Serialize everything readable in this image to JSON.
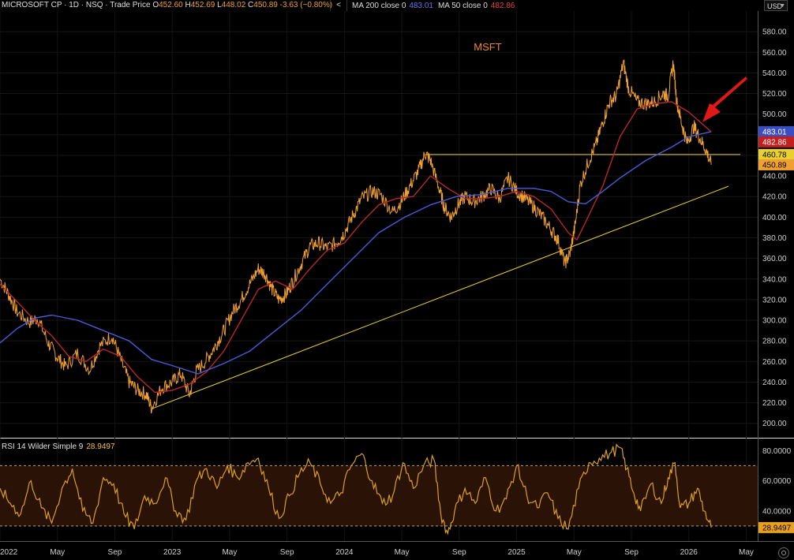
{
  "header": {
    "symbol": "MICROSOFT CP · 1D · NSQ · Trade Price",
    "open_label": "O",
    "open": "452.60",
    "high_label": "H",
    "high": "452.69",
    "low_label": "L",
    "low": "448.02",
    "close_label": "C",
    "close": "450.89",
    "change": "-3.63 (−0.80%)"
  },
  "indicators": {
    "chevron": "<",
    "ma200_label": "MA 200 close 0",
    "ma200_value": "483.01",
    "ma50_label": "MA 50 close 0",
    "ma50_value": "482.86"
  },
  "currency": "USD",
  "rsi": {
    "label": "RSI 14 Wilder Simple 9",
    "value": "28.9497"
  },
  "colors": {
    "price": "#f0a030",
    "ma200": "#4a5bd8",
    "ma50": "#b82828",
    "trendline": "#e8d030",
    "rsi": "#d9a020",
    "arrow": "#e01818"
  },
  "chart_data": {
    "type": "line",
    "title": "MSFT",
    "x_ticks": [
      "2022",
      "May",
      "Sep",
      "2023",
      "May",
      "Sep",
      "2024",
      "May",
      "Sep",
      "2025",
      "May",
      "Sep",
      "2026",
      "May"
    ],
    "price_axis": {
      "ylim": [
        186,
        600
      ],
      "ticks": [
        "580.00",
        "560.00",
        "540.00",
        "520.00",
        "500.00",
        "480.00",
        "460.00",
        "440.00",
        "420.00",
        "400.00",
        "380.00",
        "360.00",
        "340.00",
        "320.00",
        "300.00",
        "280.00",
        "260.00",
        "240.00",
        "220.00",
        "200.00"
      ]
    },
    "price_badges": [
      {
        "label": "483.01",
        "value": 483.01,
        "color": "#3a4ec0"
      },
      {
        "label": "482.86",
        "value": 482.86,
        "color": "#c02020"
      },
      {
        "label": "460.78",
        "value": 460.78,
        "color": "#e8d030"
      },
      {
        "label": "450.89",
        "value": 450.89,
        "color": "#f0a030"
      }
    ],
    "series": [
      {
        "name": "Trade Price",
        "points": [
          [
            2022.0,
            340
          ],
          [
            2022.05,
            325
          ],
          [
            2022.1,
            308
          ],
          [
            2022.17,
            298
          ],
          [
            2022.22,
            302
          ],
          [
            2022.28,
            278
          ],
          [
            2022.33,
            265
          ],
          [
            2022.38,
            255
          ],
          [
            2022.45,
            268
          ],
          [
            2022.52,
            252
          ],
          [
            2022.58,
            275
          ],
          [
            2022.65,
            285
          ],
          [
            2022.7,
            262
          ],
          [
            2022.75,
            240
          ],
          [
            2022.8,
            232
          ],
          [
            2022.85,
            228
          ],
          [
            2022.88,
            215
          ],
          [
            2022.94,
            235
          ],
          [
            2023.0,
            240
          ],
          [
            2023.05,
            248
          ],
          [
            2023.1,
            228
          ],
          [
            2023.14,
            250
          ],
          [
            2023.2,
            262
          ],
          [
            2023.25,
            275
          ],
          [
            2023.3,
            290
          ],
          [
            2023.35,
            308
          ],
          [
            2023.4,
            320
          ],
          [
            2023.45,
            335
          ],
          [
            2023.5,
            350
          ],
          [
            2023.54,
            345
          ],
          [
            2023.58,
            330
          ],
          [
            2023.62,
            320
          ],
          [
            2023.66,
            325
          ],
          [
            2023.7,
            338
          ],
          [
            2023.75,
            355
          ],
          [
            2023.8,
            372
          ],
          [
            2023.85,
            375
          ],
          [
            2023.9,
            370
          ],
          [
            2023.96,
            376
          ],
          [
            2024.0,
            385
          ],
          [
            2024.05,
            402
          ],
          [
            2024.1,
            418
          ],
          [
            2024.16,
            425
          ],
          [
            2024.21,
            422
          ],
          [
            2024.28,
            405
          ],
          [
            2024.33,
            415
          ],
          [
            2024.38,
            430
          ],
          [
            2024.43,
            445
          ],
          [
            2024.47,
            462
          ],
          [
            2024.5,
            455
          ],
          [
            2024.55,
            428
          ],
          [
            2024.58,
            410
          ],
          [
            2024.62,
            400
          ],
          [
            2024.66,
            412
          ],
          [
            2024.7,
            420
          ],
          [
            2024.75,
            415
          ],
          [
            2024.8,
            420
          ],
          [
            2024.85,
            428
          ],
          [
            2024.9,
            418
          ],
          [
            2024.95,
            438
          ],
          [
            2025.0,
            425
          ],
          [
            2025.05,
            418
          ],
          [
            2025.1,
            410
          ],
          [
            2025.15,
            400
          ],
          [
            2025.2,
            388
          ],
          [
            2025.24,
            378
          ],
          [
            2025.28,
            355
          ],
          [
            2025.31,
            365
          ],
          [
            2025.34,
            392
          ],
          [
            2025.37,
            432
          ],
          [
            2025.42,
            455
          ],
          [
            2025.46,
            470
          ],
          [
            2025.5,
            492
          ],
          [
            2025.54,
            512
          ],
          [
            2025.58,
            518
          ],
          [
            2025.62,
            550
          ],
          [
            2025.65,
            525
          ],
          [
            2025.7,
            512
          ],
          [
            2025.75,
            510
          ],
          [
            2025.8,
            512
          ],
          [
            2025.85,
            520
          ],
          [
            2025.88,
            518
          ],
          [
            2025.91,
            550
          ],
          [
            2025.93,
            512
          ],
          [
            2025.96,
            490
          ],
          [
            2025.99,
            472
          ],
          [
            2026.03,
            488
          ],
          [
            2026.06,
            478
          ],
          [
            2026.1,
            465
          ],
          [
            2026.13,
            450.89
          ]
        ]
      },
      {
        "name": "MA 50 close 0",
        "points": [
          [
            2022.0,
            335
          ],
          [
            2022.1,
            318
          ],
          [
            2022.2,
            300
          ],
          [
            2022.3,
            285
          ],
          [
            2022.4,
            265
          ],
          [
            2022.5,
            260
          ],
          [
            2022.6,
            272
          ],
          [
            2022.7,
            265
          ],
          [
            2022.8,
            245
          ],
          [
            2022.9,
            230
          ],
          [
            2023.0,
            232
          ],
          [
            2023.1,
            238
          ],
          [
            2023.2,
            250
          ],
          [
            2023.3,
            270
          ],
          [
            2023.4,
            300
          ],
          [
            2023.5,
            330
          ],
          [
            2023.6,
            338
          ],
          [
            2023.7,
            330
          ],
          [
            2023.8,
            350
          ],
          [
            2023.9,
            368
          ],
          [
            2024.0,
            375
          ],
          [
            2024.1,
            395
          ],
          [
            2024.2,
            412
          ],
          [
            2024.3,
            418
          ],
          [
            2024.4,
            420
          ],
          [
            2024.5,
            440
          ],
          [
            2024.6,
            428
          ],
          [
            2024.7,
            418
          ],
          [
            2024.8,
            418
          ],
          [
            2024.9,
            420
          ],
          [
            2025.0,
            425
          ],
          [
            2025.1,
            420
          ],
          [
            2025.2,
            408
          ],
          [
            2025.3,
            385
          ],
          [
            2025.35,
            378
          ],
          [
            2025.4,
            395
          ],
          [
            2025.5,
            430
          ],
          [
            2025.6,
            478
          ],
          [
            2025.7,
            505
          ],
          [
            2025.8,
            510
          ],
          [
            2025.9,
            512
          ],
          [
            2026.0,
            502
          ],
          [
            2026.13,
            482.86
          ]
        ]
      },
      {
        "name": "MA 200 close 0",
        "points": [
          [
            2022.0,
            278
          ],
          [
            2022.1,
            292
          ],
          [
            2022.2,
            302
          ],
          [
            2022.3,
            305
          ],
          [
            2022.45,
            300
          ],
          [
            2022.6,
            290
          ],
          [
            2022.75,
            280
          ],
          [
            2022.88,
            262
          ],
          [
            2023.0,
            256
          ],
          [
            2023.15,
            248
          ],
          [
            2023.3,
            258
          ],
          [
            2023.45,
            270
          ],
          [
            2023.6,
            290
          ],
          [
            2023.75,
            310
          ],
          [
            2023.9,
            335
          ],
          [
            2024.05,
            360
          ],
          [
            2024.2,
            385
          ],
          [
            2024.35,
            400
          ],
          [
            2024.5,
            412
          ],
          [
            2024.65,
            420
          ],
          [
            2024.8,
            422
          ],
          [
            2024.95,
            428
          ],
          [
            2025.1,
            428
          ],
          [
            2025.2,
            425
          ],
          [
            2025.3,
            415
          ],
          [
            2025.4,
            413
          ],
          [
            2025.5,
            425
          ],
          [
            2025.6,
            438
          ],
          [
            2025.75,
            455
          ],
          [
            2025.9,
            468
          ],
          [
            2026.0,
            478
          ],
          [
            2026.13,
            483.01
          ]
        ]
      }
    ],
    "trendlines": [
      {
        "name": "support",
        "points": [
          [
            2022.88,
            214
          ],
          [
            2026.23,
            430
          ]
        ]
      },
      {
        "name": "resistance",
        "points": [
          [
            2024.47,
            460.78
          ],
          [
            2026.3,
            460.78
          ]
        ]
      }
    ],
    "rsi_axis": {
      "ylim": [
        20,
        88
      ],
      "ticks": [
        "80.0000",
        "60.0000",
        "40.0000"
      ],
      "bands": [
        30,
        70
      ]
    },
    "rsi_series": [
      [
        2022.0,
        55
      ],
      [
        2022.06,
        45
      ],
      [
        2022.12,
        38
      ],
      [
        2022.18,
        60
      ],
      [
        2022.24,
        42
      ],
      [
        2022.3,
        32
      ],
      [
        2022.36,
        55
      ],
      [
        2022.42,
        68
      ],
      [
        2022.48,
        40
      ],
      [
        2022.54,
        32
      ],
      [
        2022.6,
        62
      ],
      [
        2022.66,
        58
      ],
      [
        2022.72,
        38
      ],
      [
        2022.78,
        28
      ],
      [
        2022.84,
        50
      ],
      [
        2022.9,
        45
      ],
      [
        2022.96,
        62
      ],
      [
        2023.02,
        40
      ],
      [
        2023.08,
        34
      ],
      [
        2023.14,
        60
      ],
      [
        2023.2,
        68
      ],
      [
        2023.26,
        55
      ],
      [
        2023.32,
        70
      ],
      [
        2023.38,
        62
      ],
      [
        2023.44,
        72
      ],
      [
        2023.5,
        75
      ],
      [
        2023.56,
        55
      ],
      [
        2023.62,
        35
      ],
      [
        2023.68,
        50
      ],
      [
        2023.74,
        65
      ],
      [
        2023.8,
        72
      ],
      [
        2023.86,
        58
      ],
      [
        2023.92,
        45
      ],
      [
        2023.98,
        52
      ],
      [
        2024.04,
        70
      ],
      [
        2024.1,
        78
      ],
      [
        2024.16,
        60
      ],
      [
        2024.22,
        45
      ],
      [
        2024.28,
        50
      ],
      [
        2024.34,
        72
      ],
      [
        2024.4,
        55
      ],
      [
        2024.46,
        70
      ],
      [
        2024.52,
        74
      ],
      [
        2024.56,
        38
      ],
      [
        2024.6,
        25
      ],
      [
        2024.64,
        40
      ],
      [
        2024.7,
        55
      ],
      [
        2024.76,
        45
      ],
      [
        2024.82,
        62
      ],
      [
        2024.88,
        40
      ],
      [
        2024.94,
        48
      ],
      [
        2025.0,
        70
      ],
      [
        2025.06,
        50
      ],
      [
        2025.12,
        42
      ],
      [
        2025.18,
        52
      ],
      [
        2025.24,
        35
      ],
      [
        2025.3,
        28
      ],
      [
        2025.36,
        55
      ],
      [
        2025.42,
        72
      ],
      [
        2025.48,
        75
      ],
      [
        2025.54,
        78
      ],
      [
        2025.6,
        82
      ],
      [
        2025.64,
        68
      ],
      [
        2025.68,
        52
      ],
      [
        2025.72,
        40
      ],
      [
        2025.78,
        58
      ],
      [
        2025.84,
        45
      ],
      [
        2025.88,
        62
      ],
      [
        2025.92,
        72
      ],
      [
        2025.95,
        42
      ],
      [
        2026.0,
        45
      ],
      [
        2026.05,
        55
      ],
      [
        2026.09,
        40
      ],
      [
        2026.13,
        28.95
      ]
    ]
  }
}
